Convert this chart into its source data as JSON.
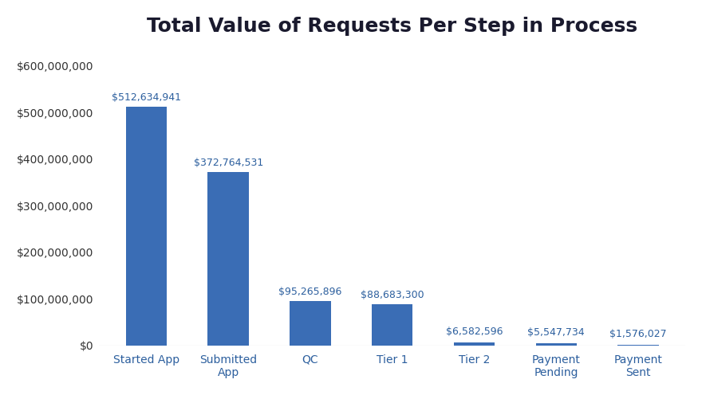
{
  "title": "Total Value of Requests Per Step in Process",
  "categories": [
    "Started App",
    "Submitted\nApp",
    "QC",
    "Tier 1",
    "Tier 2",
    "Payment\nPending",
    "Payment\nSent"
  ],
  "values": [
    512634941,
    372764531,
    95265896,
    88683300,
    6582596,
    5547734,
    1576027
  ],
  "labels": [
    "$512,634,941",
    "$372,764,531",
    "$95,265,896",
    "$88,683,300",
    "$6,582,596",
    "$5,547,734",
    "$1,576,027"
  ],
  "bar_color": "#3A6DB5",
  "background_color": "#FFFFFF",
  "title_fontsize": 18,
  "label_fontsize": 9,
  "tick_fontsize": 10,
  "ytick_fontsize": 10,
  "ylim": [
    0,
    640000000
  ],
  "yticks": [
    0,
    100000000,
    200000000,
    300000000,
    400000000,
    500000000,
    600000000
  ]
}
